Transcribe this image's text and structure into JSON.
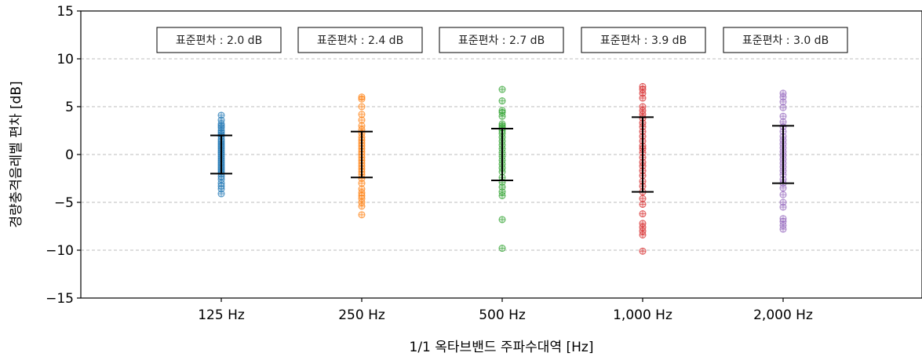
{
  "chart_data": {
    "type": "scatter",
    "xlabel": "1/1 옥타브밴드 주파수대역 [Hz]",
    "ylabel": "경량충격음레벨 편차 [dB]",
    "ylim": [
      -15,
      15
    ],
    "yticks": [
      -15,
      -10,
      -5,
      0,
      5,
      10,
      15
    ],
    "ytick_labels": [
      "−15",
      "−10",
      "−5",
      "0",
      "5",
      "10",
      "15"
    ],
    "grid": "horizontal-dashed",
    "categories": [
      "125 Hz",
      "250 Hz",
      "500 Hz",
      "1,000 Hz",
      "2,000 Hz"
    ],
    "series": [
      {
        "category": "125 Hz",
        "color": "#1f77b4",
        "std_dev": 2.0,
        "std_label": "표준편차 : 2.0 dB",
        "values": [
          4.1,
          3.6,
          3.2,
          3.0,
          2.8,
          2.5,
          2.3,
          2.1,
          1.9,
          1.6,
          1.4,
          1.2,
          1.0,
          0.8,
          0.6,
          0.4,
          0.2,
          0.0,
          -0.2,
          -0.4,
          -0.6,
          -0.8,
          -1.0,
          -1.2,
          -1.4,
          -1.6,
          -1.8,
          -2.0,
          -2.3,
          -2.6,
          -3.0,
          -3.3,
          -3.6,
          -4.1
        ]
      },
      {
        "category": "250 Hz",
        "color": "#ff7f0e",
        "std_dev": 2.4,
        "std_label": "표준편차 : 2.4 dB",
        "values": [
          6.0,
          5.8,
          5.0,
          4.2,
          3.6,
          3.0,
          2.6,
          2.2,
          1.8,
          1.5,
          1.2,
          0.9,
          0.6,
          0.3,
          0.0,
          -0.3,
          -0.6,
          -0.9,
          -1.2,
          -1.5,
          -1.8,
          -2.1,
          -2.5,
          -3.0,
          -3.6,
          -4.0,
          -4.3,
          -4.6,
          -5.0,
          -5.4,
          -6.3
        ]
      },
      {
        "category": "500 Hz",
        "color": "#2ca02c",
        "std_dev": 2.7,
        "std_label": "표준편차 : 2.7 dB",
        "values": [
          6.8,
          5.6,
          4.6,
          4.4,
          4.0,
          3.2,
          3.0,
          2.8,
          2.5,
          2.2,
          1.8,
          1.4,
          1.0,
          0.6,
          0.2,
          -0.2,
          -0.6,
          -1.0,
          -1.4,
          -1.8,
          -2.4,
          -2.9,
          -3.4,
          -3.9,
          -4.3,
          -6.8,
          -9.8
        ]
      },
      {
        "category": "1,000 Hz",
        "color": "#d62728",
        "std_dev": 3.9,
        "std_label": "표준편차 : 3.9 dB",
        "values": [
          7.1,
          6.8,
          6.4,
          5.9,
          5.0,
          4.6,
          4.2,
          3.8,
          3.3,
          2.9,
          2.4,
          1.9,
          1.4,
          0.9,
          0.6,
          0.2,
          -0.3,
          -0.8,
          -1.2,
          -1.7,
          -2.2,
          -2.8,
          -3.3,
          -3.9,
          -4.6,
          -5.2,
          -6.2,
          -7.2,
          -7.6,
          -8.0,
          -8.4,
          -10.1
        ]
      },
      {
        "category": "2,000 Hz",
        "color": "#9467bd",
        "std_dev": 3.0,
        "std_label": "표준편차 : 3.0 dB",
        "values": [
          6.4,
          6.0,
          5.5,
          4.9,
          4.0,
          3.4,
          2.9,
          2.4,
          1.9,
          1.5,
          1.1,
          0.7,
          0.3,
          -0.1,
          -0.5,
          -0.9,
          -1.3,
          -1.7,
          -2.1,
          -2.6,
          -3.0,
          -3.5,
          -4.2,
          -5.0,
          -5.5,
          -6.7,
          -7.0,
          -7.4,
          -7.8
        ]
      }
    ]
  }
}
